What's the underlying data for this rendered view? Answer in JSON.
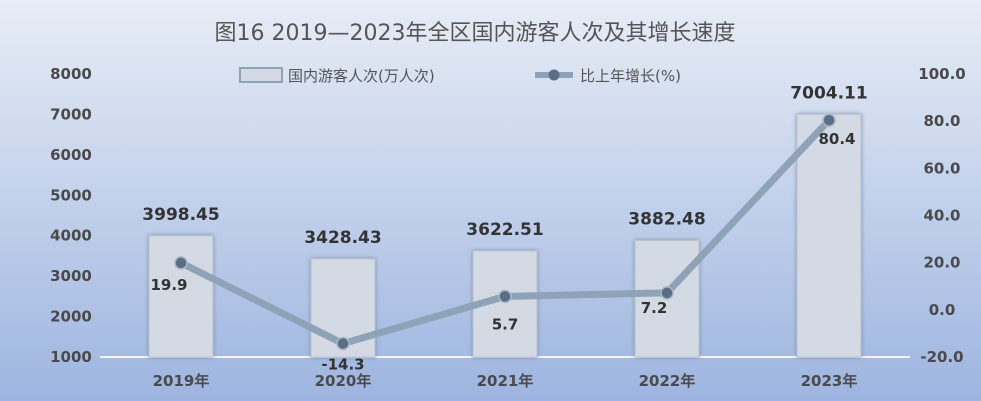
{
  "chart_data": {
    "type": "bar+line",
    "title": "图16  2019—2023年全区国内游客人次及其增长速度",
    "categories": [
      "2019年",
      "2020年",
      "2021年",
      "2022年",
      "2023年"
    ],
    "series": [
      {
        "name": "国内游客人次(万人次)",
        "type": "bar",
        "axis": "left",
        "values": [
          3998.45,
          3428.43,
          3622.51,
          3882.48,
          7004.11
        ],
        "labels": [
          "3998.45",
          "3428.43",
          "3622.51",
          "3882.48",
          "7004.11"
        ],
        "color": "#d3dae3"
      },
      {
        "name": "比上年增长(%)",
        "type": "line",
        "axis": "right",
        "values": [
          19.9,
          -14.3,
          5.7,
          7.2,
          80.4
        ],
        "labels": [
          "19.9",
          "-14.3",
          "5.7",
          "7.2",
          "80.4"
        ],
        "color": "#8fa3b8",
        "marker_color": "#5a6f86"
      }
    ],
    "y_left": {
      "range": [
        1000,
        8000
      ],
      "ticks": [
        "1000",
        "2000",
        "3000",
        "4000",
        "5000",
        "6000",
        "7000",
        "8000"
      ]
    },
    "y_right": {
      "range": [
        -20,
        100
      ],
      "ticks": [
        "-20.0",
        "0.0",
        "20.0",
        "40.0",
        "60.0",
        "80.0",
        "100.0"
      ]
    },
    "grid": false,
    "legend_position": "top",
    "background": [
      "#e8edf6",
      "#9db5e0"
    ]
  }
}
